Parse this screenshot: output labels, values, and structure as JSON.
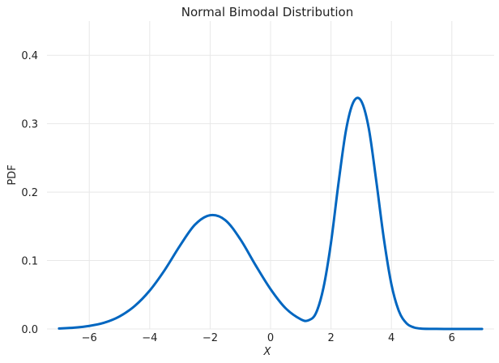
{
  "chart_data": {
    "type": "line",
    "title": "Normal Bimodal Distribution",
    "xlabel": "X",
    "ylabel": "PDF",
    "xlim": [
      -7.4,
      7.4
    ],
    "ylim": [
      0,
      0.45
    ],
    "grid": true,
    "legend": "none",
    "line_color": "#0066c0",
    "x_ticks": [
      {
        "value": -6,
        "label": "−6"
      },
      {
        "value": -4,
        "label": "−4"
      },
      {
        "value": -2,
        "label": "−2"
      },
      {
        "value": 0,
        "label": "0"
      },
      {
        "value": 2,
        "label": "2"
      },
      {
        "value": 4,
        "label": "4"
      },
      {
        "value": 6,
        "label": "6"
      }
    ],
    "y_ticks": [
      {
        "value": 0,
        "label": "0.0"
      },
      {
        "value": 0.1,
        "label": "0.1"
      },
      {
        "value": 0.2,
        "label": "0.2"
      },
      {
        "value": 0.3,
        "label": "0.3"
      },
      {
        "value": 0.4,
        "label": "0.4"
      }
    ],
    "series": [
      {
        "x": [
          -7.0,
          -6.5,
          -6.0,
          -5.5,
          -5.0,
          -4.5,
          -4.0,
          -3.5,
          -3.0,
          -2.5,
          -2.0,
          -1.5,
          -1.0,
          -0.5,
          0.0,
          0.5,
          1.0,
          1.25,
          1.5,
          1.75,
          2.0,
          2.25,
          2.5,
          2.75,
          3.0,
          3.25,
          3.5,
          3.75,
          4.0,
          4.25,
          4.5,
          4.75,
          5.0,
          5.5,
          6.0,
          6.5,
          7.0
        ],
        "y": [
          0.0007,
          0.0019,
          0.0044,
          0.0092,
          0.0183,
          0.0335,
          0.0561,
          0.0864,
          0.1216,
          0.1525,
          0.1662,
          0.1591,
          0.1311,
          0.0935,
          0.0582,
          0.0302,
          0.0141,
          0.0126,
          0.0229,
          0.0601,
          0.126,
          0.2136,
          0.2912,
          0.3323,
          0.3332,
          0.2934,
          0.2159,
          0.1319,
          0.0652,
          0.0259,
          0.0083,
          0.0022,
          0.0005,
          0.0001,
          0.0,
          0.0,
          0.0
        ]
      }
    ]
  }
}
